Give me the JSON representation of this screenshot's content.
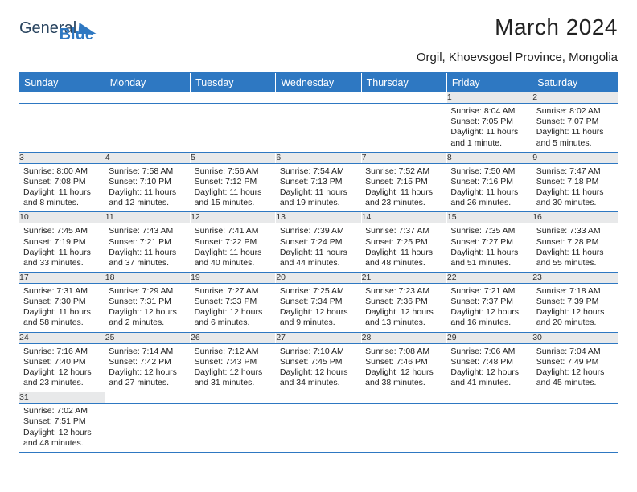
{
  "logo": {
    "general": "General",
    "blue": "Blue"
  },
  "title": "March 2024",
  "location": "Orgil, Khoevsgoel Province, Mongolia",
  "weekdays": [
    "Sunday",
    "Monday",
    "Tuesday",
    "Wednesday",
    "Thursday",
    "Friday",
    "Saturday"
  ],
  "colors": {
    "headerBg": "#2e78c2",
    "numBg": "#e8e9ea",
    "ruleColor": "#2e78c2"
  },
  "weeks": [
    [
      null,
      null,
      null,
      null,
      null,
      {
        "n": "1",
        "sr": "Sunrise: 8:04 AM",
        "ss": "Sunset: 7:05 PM",
        "d1": "Daylight: 11 hours",
        "d2": "and 1 minute."
      },
      {
        "n": "2",
        "sr": "Sunrise: 8:02 AM",
        "ss": "Sunset: 7:07 PM",
        "d1": "Daylight: 11 hours",
        "d2": "and 5 minutes."
      }
    ],
    [
      {
        "n": "3",
        "sr": "Sunrise: 8:00 AM",
        "ss": "Sunset: 7:08 PM",
        "d1": "Daylight: 11 hours",
        "d2": "and 8 minutes."
      },
      {
        "n": "4",
        "sr": "Sunrise: 7:58 AM",
        "ss": "Sunset: 7:10 PM",
        "d1": "Daylight: 11 hours",
        "d2": "and 12 minutes."
      },
      {
        "n": "5",
        "sr": "Sunrise: 7:56 AM",
        "ss": "Sunset: 7:12 PM",
        "d1": "Daylight: 11 hours",
        "d2": "and 15 minutes."
      },
      {
        "n": "6",
        "sr": "Sunrise: 7:54 AM",
        "ss": "Sunset: 7:13 PM",
        "d1": "Daylight: 11 hours",
        "d2": "and 19 minutes."
      },
      {
        "n": "7",
        "sr": "Sunrise: 7:52 AM",
        "ss": "Sunset: 7:15 PM",
        "d1": "Daylight: 11 hours",
        "d2": "and 23 minutes."
      },
      {
        "n": "8",
        "sr": "Sunrise: 7:50 AM",
        "ss": "Sunset: 7:16 PM",
        "d1": "Daylight: 11 hours",
        "d2": "and 26 minutes."
      },
      {
        "n": "9",
        "sr": "Sunrise: 7:47 AM",
        "ss": "Sunset: 7:18 PM",
        "d1": "Daylight: 11 hours",
        "d2": "and 30 minutes."
      }
    ],
    [
      {
        "n": "10",
        "sr": "Sunrise: 7:45 AM",
        "ss": "Sunset: 7:19 PM",
        "d1": "Daylight: 11 hours",
        "d2": "and 33 minutes."
      },
      {
        "n": "11",
        "sr": "Sunrise: 7:43 AM",
        "ss": "Sunset: 7:21 PM",
        "d1": "Daylight: 11 hours",
        "d2": "and 37 minutes."
      },
      {
        "n": "12",
        "sr": "Sunrise: 7:41 AM",
        "ss": "Sunset: 7:22 PM",
        "d1": "Daylight: 11 hours",
        "d2": "and 40 minutes."
      },
      {
        "n": "13",
        "sr": "Sunrise: 7:39 AM",
        "ss": "Sunset: 7:24 PM",
        "d1": "Daylight: 11 hours",
        "d2": "and 44 minutes."
      },
      {
        "n": "14",
        "sr": "Sunrise: 7:37 AM",
        "ss": "Sunset: 7:25 PM",
        "d1": "Daylight: 11 hours",
        "d2": "and 48 minutes."
      },
      {
        "n": "15",
        "sr": "Sunrise: 7:35 AM",
        "ss": "Sunset: 7:27 PM",
        "d1": "Daylight: 11 hours",
        "d2": "and 51 minutes."
      },
      {
        "n": "16",
        "sr": "Sunrise: 7:33 AM",
        "ss": "Sunset: 7:28 PM",
        "d1": "Daylight: 11 hours",
        "d2": "and 55 minutes."
      }
    ],
    [
      {
        "n": "17",
        "sr": "Sunrise: 7:31 AM",
        "ss": "Sunset: 7:30 PM",
        "d1": "Daylight: 11 hours",
        "d2": "and 58 minutes."
      },
      {
        "n": "18",
        "sr": "Sunrise: 7:29 AM",
        "ss": "Sunset: 7:31 PM",
        "d1": "Daylight: 12 hours",
        "d2": "and 2 minutes."
      },
      {
        "n": "19",
        "sr": "Sunrise: 7:27 AM",
        "ss": "Sunset: 7:33 PM",
        "d1": "Daylight: 12 hours",
        "d2": "and 6 minutes."
      },
      {
        "n": "20",
        "sr": "Sunrise: 7:25 AM",
        "ss": "Sunset: 7:34 PM",
        "d1": "Daylight: 12 hours",
        "d2": "and 9 minutes."
      },
      {
        "n": "21",
        "sr": "Sunrise: 7:23 AM",
        "ss": "Sunset: 7:36 PM",
        "d1": "Daylight: 12 hours",
        "d2": "and 13 minutes."
      },
      {
        "n": "22",
        "sr": "Sunrise: 7:21 AM",
        "ss": "Sunset: 7:37 PM",
        "d1": "Daylight: 12 hours",
        "d2": "and 16 minutes."
      },
      {
        "n": "23",
        "sr": "Sunrise: 7:18 AM",
        "ss": "Sunset: 7:39 PM",
        "d1": "Daylight: 12 hours",
        "d2": "and 20 minutes."
      }
    ],
    [
      {
        "n": "24",
        "sr": "Sunrise: 7:16 AM",
        "ss": "Sunset: 7:40 PM",
        "d1": "Daylight: 12 hours",
        "d2": "and 23 minutes."
      },
      {
        "n": "25",
        "sr": "Sunrise: 7:14 AM",
        "ss": "Sunset: 7:42 PM",
        "d1": "Daylight: 12 hours",
        "d2": "and 27 minutes."
      },
      {
        "n": "26",
        "sr": "Sunrise: 7:12 AM",
        "ss": "Sunset: 7:43 PM",
        "d1": "Daylight: 12 hours",
        "d2": "and 31 minutes."
      },
      {
        "n": "27",
        "sr": "Sunrise: 7:10 AM",
        "ss": "Sunset: 7:45 PM",
        "d1": "Daylight: 12 hours",
        "d2": "and 34 minutes."
      },
      {
        "n": "28",
        "sr": "Sunrise: 7:08 AM",
        "ss": "Sunset: 7:46 PM",
        "d1": "Daylight: 12 hours",
        "d2": "and 38 minutes."
      },
      {
        "n": "29",
        "sr": "Sunrise: 7:06 AM",
        "ss": "Sunset: 7:48 PM",
        "d1": "Daylight: 12 hours",
        "d2": "and 41 minutes."
      },
      {
        "n": "30",
        "sr": "Sunrise: 7:04 AM",
        "ss": "Sunset: 7:49 PM",
        "d1": "Daylight: 12 hours",
        "d2": "and 45 minutes."
      }
    ],
    [
      {
        "n": "31",
        "sr": "Sunrise: 7:02 AM",
        "ss": "Sunset: 7:51 PM",
        "d1": "Daylight: 12 hours",
        "d2": "and 48 minutes."
      },
      null,
      null,
      null,
      null,
      null,
      null
    ]
  ]
}
